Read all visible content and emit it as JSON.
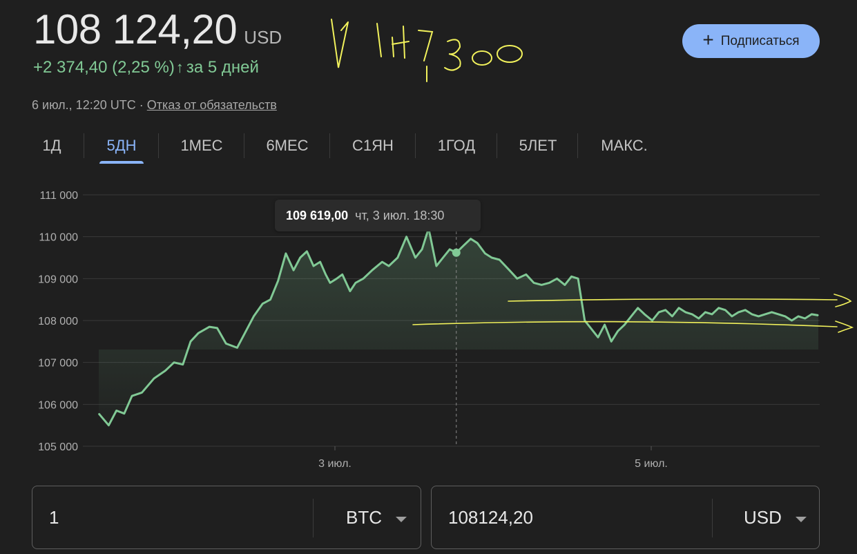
{
  "header": {
    "price": "108 124,20",
    "currency": "USD",
    "change": "+2 374,40 (2,25 %)",
    "change_arrow": "↑",
    "period": "за 5 дней",
    "timestamp": "6 июл., 12:20 UTC",
    "separator": "·",
    "disclaimer": "Отказ от обязательств",
    "up_color": "#81c995"
  },
  "subscribe": {
    "icon": "plus-icon",
    "label": "Подписаться",
    "color": "#8ab4f8"
  },
  "tabs": [
    {
      "label": "1Д"
    },
    {
      "label": "5ДН",
      "active": true
    },
    {
      "label": "1МЕС"
    },
    {
      "label": "6МЕС"
    },
    {
      "label": "С1ЯН"
    },
    {
      "label": "1ГОД"
    },
    {
      "label": "5ЛЕТ"
    },
    {
      "label": "МАКС."
    }
  ],
  "tooltip": {
    "price": "109 619,00",
    "time": "чт, 3 июл. 18:30"
  },
  "handwriting": "107,300",
  "chart_data": {
    "type": "line",
    "title": "",
    "ylim": [
      105000,
      111000
    ],
    "y_ticks": [
      "111 000",
      "110 000",
      "109 000",
      "108 000",
      "107 000",
      "106 000",
      "105 000"
    ],
    "x_ticks": [
      "3 июл.",
      "5 июл."
    ],
    "grid": true,
    "line_color": "#81c995",
    "series": [
      {
        "x": [
          0,
          0.09,
          0.16,
          0.23,
          0.3,
          0.39,
          0.5,
          0.6,
          0.68,
          0.76,
          0.83,
          0.9,
          1.0,
          1.07,
          1.15,
          1.25,
          1.32,
          1.4,
          1.48,
          1.55,
          1.62,
          1.69,
          1.76,
          1.82,
          1.88,
          1.94,
          2.0,
          2.05,
          2.09,
          2.15,
          2.2,
          2.27,
          2.32,
          2.39,
          2.47,
          2.56,
          2.62,
          2.7,
          2.78,
          2.86,
          2.92,
          2.98,
          3.05,
          3.11,
          3.17,
          3.23,
          3.3,
          3.36,
          3.42,
          3.49,
          3.55,
          3.62,
          3.71,
          3.78,
          3.86,
          3.93,
          4.0,
          4.07,
          4.14,
          4.21,
          4.27,
          4.33,
          4.39,
          4.45,
          4.51,
          4.57,
          4.63,
          4.69,
          4.75,
          4.81,
          4.87,
          4.93,
          5.0,
          5.06,
          5.12,
          5.18,
          5.24,
          5.3,
          5.36,
          5.42,
          5.48,
          5.54,
          5.6,
          5.66,
          5.72,
          5.78,
          5.84,
          5.9,
          5.96,
          6.02,
          6.08,
          6.14,
          6.2,
          6.26,
          6.32,
          6.38,
          6.44,
          6.5
        ],
        "values": [
          105780,
          105500,
          105850,
          105780,
          106200,
          106280,
          106620,
          106800,
          107000,
          106950,
          107500,
          107700,
          107850,
          107820,
          107450,
          107350,
          107700,
          108100,
          108400,
          108500,
          108950,
          109600,
          109200,
          109500,
          109650,
          109300,
          109400,
          109100,
          108900,
          109000,
          109100,
          108700,
          108900,
          109000,
          109200,
          109400,
          109300,
          109500,
          110000,
          109500,
          109700,
          110200,
          109300,
          109500,
          109700,
          109619,
          109800,
          109950,
          109850,
          109600,
          109500,
          109450,
          109200,
          109000,
          109100,
          108900,
          108850,
          108900,
          109000,
          108850,
          109050,
          109000,
          108000,
          107800,
          107600,
          107900,
          107500,
          107750,
          107900,
          108100,
          108300,
          108150,
          108000,
          108200,
          108250,
          108100,
          108300,
          108200,
          108150,
          108050,
          108200,
          108150,
          108300,
          108250,
          108100,
          108200,
          108250,
          108150,
          108100,
          108150,
          108200,
          108150,
          108100,
          108000,
          108100,
          108050,
          108150,
          108124
        ]
      }
    ]
  },
  "converter": {
    "left": {
      "value": "1",
      "unit": "BTC",
      "dropdown_icon": "dropdown-arrow-icon"
    },
    "right": {
      "value": "108124,20",
      "unit": "USD",
      "dropdown_icon": "dropdown-arrow-icon"
    }
  }
}
